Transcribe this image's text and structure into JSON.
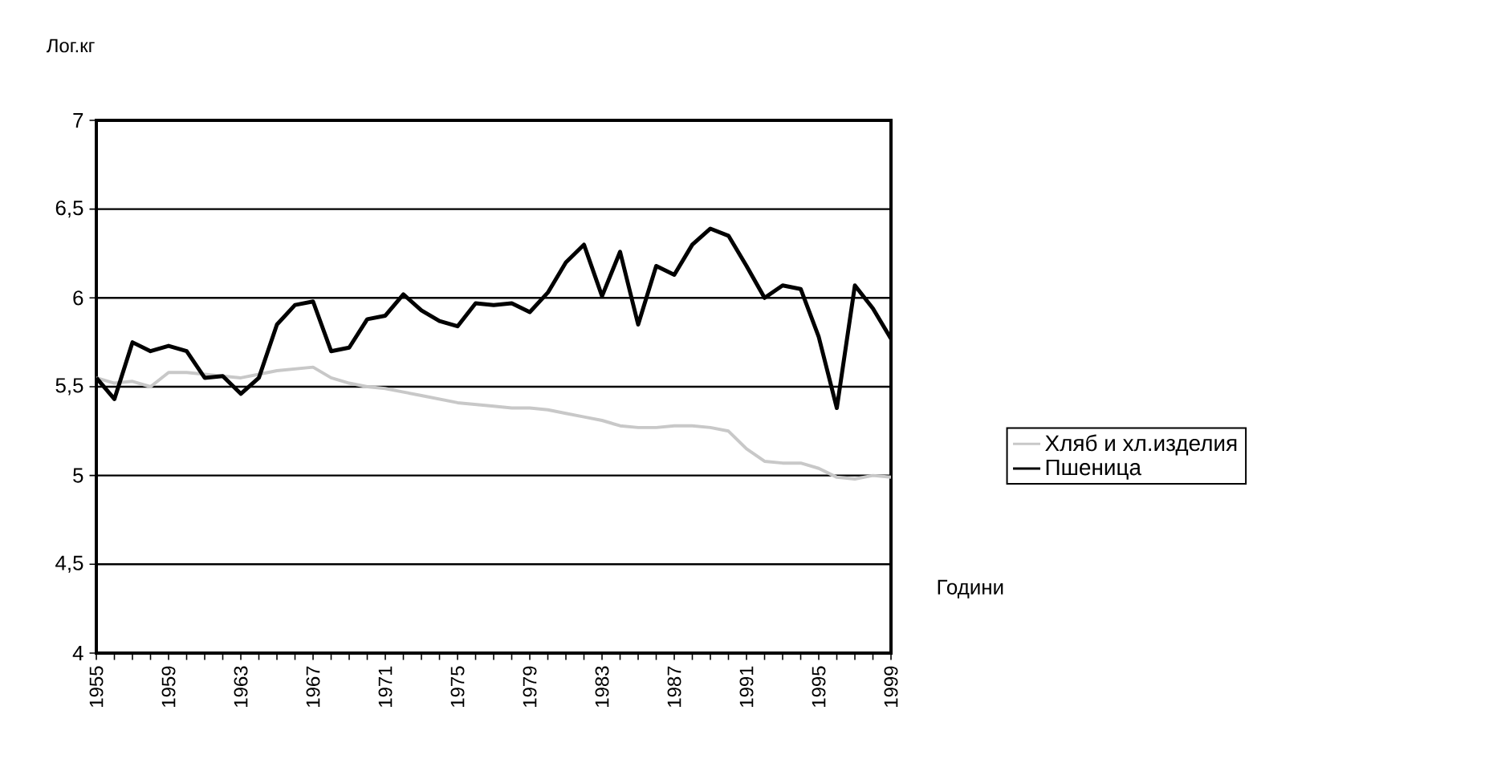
{
  "chart_data": {
    "type": "line",
    "ylabel": "Лог.кг",
    "xlabel": "Години",
    "x": [
      1955,
      1956,
      1957,
      1958,
      1959,
      1960,
      1961,
      1962,
      1963,
      1964,
      1965,
      1966,
      1967,
      1968,
      1969,
      1970,
      1971,
      1972,
      1973,
      1974,
      1975,
      1976,
      1977,
      1978,
      1979,
      1980,
      1981,
      1982,
      1983,
      1984,
      1985,
      1986,
      1987,
      1988,
      1989,
      1990,
      1991,
      1992,
      1993,
      1994,
      1995,
      1996,
      1997,
      1998,
      1999
    ],
    "series": [
      {
        "name": "Хляб и хл.изделия",
        "color": "#c8c8c8",
        "values": [
          5.55,
          5.52,
          5.53,
          5.5,
          5.58,
          5.58,
          5.57,
          5.56,
          5.55,
          5.57,
          5.59,
          5.6,
          5.61,
          5.55,
          5.52,
          5.5,
          5.49,
          5.47,
          5.45,
          5.43,
          5.41,
          5.4,
          5.39,
          5.38,
          5.38,
          5.37,
          5.35,
          5.33,
          5.31,
          5.28,
          5.27,
          5.27,
          5.28,
          5.28,
          5.27,
          5.25,
          5.15,
          5.08,
          5.07,
          5.07,
          5.04,
          4.99,
          4.98,
          5.0,
          4.99
        ]
      },
      {
        "name": "Пшеница",
        "color": "#000000",
        "values": [
          5.55,
          5.43,
          5.75,
          5.7,
          5.73,
          5.7,
          5.55,
          5.56,
          5.46,
          5.55,
          5.85,
          5.96,
          5.98,
          5.7,
          5.72,
          5.88,
          5.9,
          6.02,
          5.93,
          5.87,
          5.84,
          5.97,
          5.96,
          5.97,
          5.92,
          6.03,
          6.2,
          6.3,
          6.01,
          6.26,
          5.85,
          6.18,
          6.13,
          6.3,
          6.39,
          6.35,
          6.18,
          6.0,
          6.07,
          6.05,
          5.78,
          5.38,
          6.07,
          5.94,
          5.77
        ]
      }
    ],
    "xlim": [
      1955,
      1999
    ],
    "xticks": [
      1955,
      {
        "value": 1956,
        "label": null
      },
      {
        "value": 1957,
        "label": null
      },
      {
        "value": 1958,
        "label": null
      },
      1959,
      {
        "value": 1960,
        "label": null
      },
      {
        "value": 1961,
        "label": null
      },
      {
        "value": 1962,
        "label": null
      },
      1963,
      {
        "value": 1964,
        "label": null
      },
      {
        "value": 1965,
        "label": null
      },
      {
        "value": 1966,
        "label": null
      },
      1967,
      {
        "value": 1968,
        "label": null
      },
      {
        "value": 1969,
        "label": null
      },
      {
        "value": 1970,
        "label": null
      },
      1971,
      {
        "value": 1972,
        "label": null
      },
      {
        "value": 1973,
        "label": null
      },
      {
        "value": 1974,
        "label": null
      },
      1975,
      {
        "value": 1976,
        "label": null
      },
      {
        "value": 1977,
        "label": null
      },
      {
        "value": 1978,
        "label": null
      },
      1979,
      {
        "value": 1980,
        "label": null
      },
      {
        "value": 1981,
        "label": null
      },
      {
        "value": 1982,
        "label": null
      },
      1983,
      {
        "value": 1984,
        "label": null
      },
      {
        "value": 1985,
        "label": null
      },
      {
        "value": 1986,
        "label": null
      },
      1987,
      {
        "value": 1988,
        "label": null
      },
      {
        "value": 1989,
        "label": null
      },
      {
        "value": 1990,
        "label": null
      },
      1991,
      {
        "value": 1992,
        "label": null
      },
      {
        "value": 1993,
        "label": null
      },
      {
        "value": 1994,
        "label": null
      },
      1995,
      {
        "value": 1996,
        "label": null
      },
      {
        "value": 1997,
        "label": null
      },
      {
        "value": 1998,
        "label": null
      },
      1999
    ],
    "ylim": [
      4,
      7
    ],
    "yticks": [
      4,
      {
        "value": 4.5,
        "label": "4,5"
      },
      5,
      {
        "value": 5.5,
        "label": "5,5"
      },
      6,
      {
        "value": 6.5,
        "label": "6,5"
      },
      7
    ],
    "grid": "y",
    "legend": "right",
    "marker": "none",
    "line_style": "solid"
  }
}
